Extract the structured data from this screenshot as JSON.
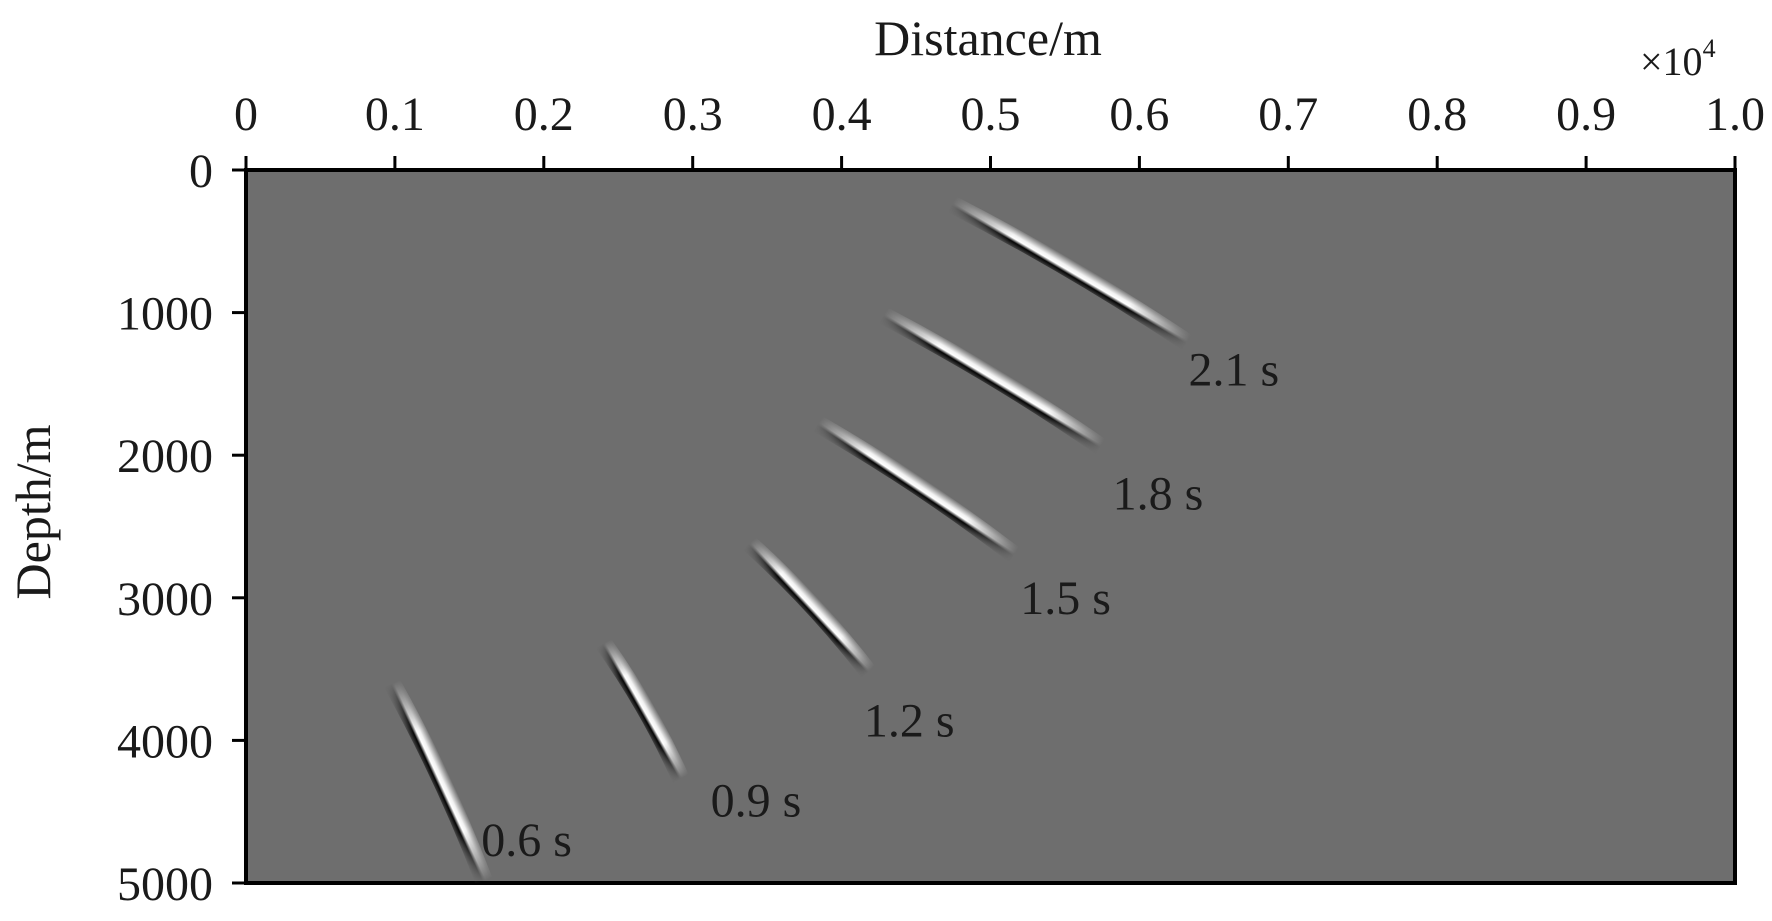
{
  "chart_data": {
    "type": "heatmap",
    "title": "",
    "xlabel": "Distance/m",
    "ylabel": "Depth/m",
    "x_multiplier": "×10",
    "x_multiplier_exponent": "4",
    "xlim": [
      0,
      1.0
    ],
    "ylim": [
      0,
      5000
    ],
    "y_inverted": true,
    "x_ticks": [
      0,
      0.1,
      0.2,
      0.3,
      0.4,
      0.5,
      0.6,
      0.7,
      0.8,
      0.9,
      1.0
    ],
    "x_tick_labels": [
      "0",
      "0.1",
      "0.2",
      "0.3",
      "0.4",
      "0.5",
      "0.6",
      "0.7",
      "0.8",
      "0.9",
      "1.0"
    ],
    "y_ticks": [
      0,
      1000,
      2000,
      3000,
      4000,
      5000
    ],
    "y_tick_labels": [
      "0",
      "1000",
      "2000",
      "3000",
      "4000",
      "5000"
    ],
    "background_color": "#6e6e6e",
    "grid": false,
    "series": [
      {
        "name": "0.6 s",
        "label": "0.6 s",
        "start": [
          0.098,
          3600
        ],
        "end": [
          0.16,
          4990
        ],
        "label_at": [
          0.158,
          4700
        ]
      },
      {
        "name": "0.9 s",
        "label": "0.9 s",
        "start": [
          0.24,
          3320
        ],
        "end": [
          0.292,
          4270
        ],
        "label_at": [
          0.312,
          4420
        ]
      },
      {
        "name": "1.2 s",
        "label": "1.2 s",
        "start": [
          0.338,
          2620
        ],
        "end": [
          0.418,
          3520
        ],
        "label_at": [
          0.415,
          3860
        ]
      },
      {
        "name": "1.5 s",
        "label": "1.5 s",
        "start": [
          0.384,
          1780
        ],
        "end": [
          0.516,
          2700
        ],
        "label_at": [
          0.52,
          3000
        ]
      },
      {
        "name": "1.8 s",
        "label": "1.8 s",
        "start": [
          0.428,
          1020
        ],
        "end": [
          0.574,
          1940
        ],
        "label_at": [
          0.582,
          2270
        ]
      },
      {
        "name": "2.1 s",
        "label": "2.1 s",
        "start": [
          0.474,
          240
        ],
        "end": [
          0.632,
          1210
        ],
        "label_at": [
          0.633,
          1400
        ]
      }
    ]
  }
}
